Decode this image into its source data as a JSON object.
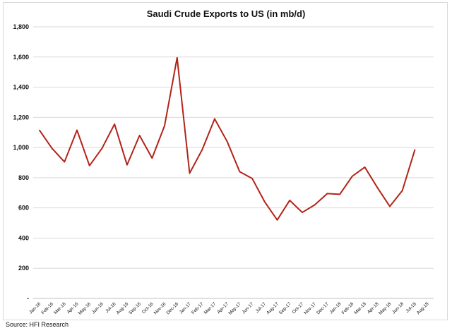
{
  "chart_data": {
    "type": "line",
    "title": "Saudi Crude Exports to US (in mb/d)",
    "xlabel": "",
    "ylabel": "",
    "ylim": [
      0,
      1800
    ],
    "yticks": [
      0,
      200,
      400,
      600,
      800,
      1000,
      1200,
      1400,
      1600,
      1800
    ],
    "ytick_labels": [
      "-",
      "200",
      "400",
      "600",
      "800",
      "1,000",
      "1,200",
      "1,400",
      "1,600",
      "1,800"
    ],
    "grid": true,
    "legend": "none",
    "line_color": "#b22418",
    "categories": [
      "Jan-16",
      "Feb-16",
      "Mar-16",
      "Apr-16",
      "May-16",
      "Jun-16",
      "Jul-16",
      "Aug-16",
      "Sep-16",
      "Oct-16",
      "Nov-16",
      "Dec-16",
      "Jan-17",
      "Feb-17",
      "Mar-17",
      "Apr-17",
      "May-17",
      "Jun-17",
      "Jul-17",
      "Aug-17",
      "Sep-17",
      "Oct-17",
      "Nov-17",
      "Dec-17",
      "Jan-18",
      "Feb-18",
      "Mar-18",
      "Apr-18",
      "May-18",
      "Jun-18",
      "Jul-18",
      "Aug-18"
    ],
    "series": [
      {
        "name": "",
        "values": [
          1115,
          995,
          905,
          1115,
          880,
          995,
          1155,
          885,
          1080,
          930,
          1145,
          1595,
          830,
          985,
          1190,
          1040,
          840,
          795,
          640,
          520,
          650,
          570,
          620,
          695,
          690,
          810,
          870,
          735,
          610,
          715,
          985,
          null
        ]
      }
    ]
  },
  "source": "Source: HFI Research"
}
